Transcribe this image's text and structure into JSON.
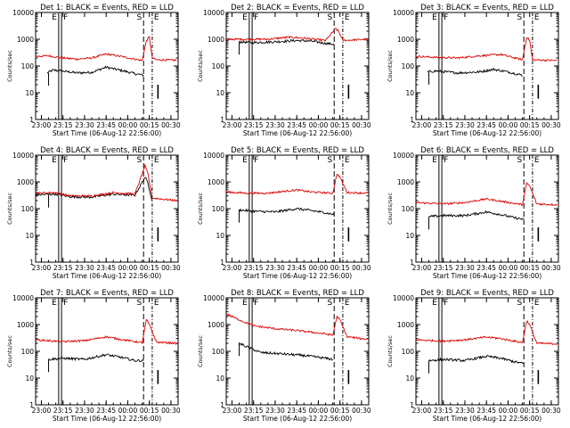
{
  "figure": {
    "colors": {
      "events": "#000000",
      "lld": "#dd0000",
      "axes": "#000000"
    },
    "xaxis_label": "Start Time (06-Aug-12 22:56:00)",
    "yaxis_label": "Counts/sec",
    "x_tick_labels": [
      "23:00",
      "23:15",
      "23:30",
      "23:45",
      "00:00",
      "00:15",
      "00:30"
    ],
    "y_tick_labels": [
      "1",
      "10",
      "100",
      "1000",
      "10000"
    ],
    "marker_labels": {
      "E": "E",
      "F": "F",
      "S": "S",
      "E2": "E"
    }
  },
  "chart_data": [
    {
      "type": "line",
      "title": "Det 1: BLACK = Events, RED = LLD",
      "xlim": [
        "22:56",
        "00:35"
      ],
      "ylim": [
        1,
        10000
      ],
      "yscale": "log",
      "vlines": [
        "23:12",
        "23:14",
        "00:11",
        "00:17"
      ],
      "series": [
        {
          "name": "Events",
          "color": "black",
          "x": [
            "23:04",
            "23:08",
            "23:14",
            "23:25",
            "23:35",
            "23:45",
            "23:52",
            "00:00",
            "00:06",
            "00:11"
          ],
          "y": [
            55,
            70,
            65,
            55,
            58,
            90,
            75,
            60,
            50,
            45
          ]
        },
        {
          "name": "LLD",
          "color": "red",
          "x": [
            "22:56",
            "23:05",
            "23:14",
            "23:25",
            "23:35",
            "23:45",
            "23:55",
            "00:05",
            "00:10",
            "00:13",
            "00:15",
            "00:17",
            "00:20",
            "00:34"
          ],
          "y": [
            230,
            240,
            200,
            180,
            200,
            280,
            230,
            180,
            160,
            900,
            1200,
            200,
            170,
            165
          ]
        }
      ]
    },
    {
      "type": "line",
      "title": "Det 2: BLACK = Events, RED = LLD",
      "xlim": [
        "22:56",
        "00:35"
      ],
      "ylim": [
        1,
        10000
      ],
      "yscale": "log",
      "vlines": [
        "23:12",
        "23:14",
        "00:11",
        "00:17"
      ],
      "series": [
        {
          "name": "Events",
          "color": "black",
          "x": [
            "23:05",
            "23:14",
            "23:30",
            "23:45",
            "23:55",
            "00:05",
            "00:11"
          ],
          "y": [
            800,
            750,
            800,
            900,
            850,
            700,
            650
          ]
        },
        {
          "name": "LLD",
          "color": "red",
          "x": [
            "22:56",
            "23:10",
            "23:25",
            "23:40",
            "23:50",
            "00:05",
            "00:12",
            "00:14",
            "00:17",
            "00:34"
          ],
          "y": [
            1000,
            1000,
            1000,
            1200,
            1100,
            900,
            2500,
            2000,
            900,
            1000
          ]
        }
      ]
    },
    {
      "type": "line",
      "title": "Det 3: BLACK = Events, RED = LLD",
      "xlim": [
        "22:56",
        "00:35"
      ],
      "ylim": [
        1,
        10000
      ],
      "yscale": "log",
      "vlines": [
        "23:12",
        "23:14",
        "00:11",
        "00:17"
      ],
      "series": [
        {
          "name": "Events",
          "color": "black",
          "x": [
            "23:04",
            "23:10",
            "23:25",
            "23:40",
            "23:50",
            "00:00",
            "00:10"
          ],
          "y": [
            60,
            65,
            55,
            60,
            75,
            60,
            45
          ]
        },
        {
          "name": "LLD",
          "color": "red",
          "x": [
            "22:56",
            "23:10",
            "23:25",
            "23:40",
            "23:55",
            "00:10",
            "00:13",
            "00:15",
            "00:17",
            "00:34"
          ],
          "y": [
            230,
            210,
            200,
            240,
            270,
            170,
            1200,
            900,
            170,
            160
          ]
        }
      ]
    },
    {
      "type": "line",
      "title": "Det 4: BLACK = Events, RED = LLD",
      "xlim": [
        "22:56",
        "00:35"
      ],
      "ylim": [
        1,
        10000
      ],
      "yscale": "log",
      "vlines": [
        "23:12",
        "23:14",
        "00:11",
        "00:17"
      ],
      "series": [
        {
          "name": "Events",
          "color": "black",
          "x": [
            "22:56",
            "23:10",
            "23:20",
            "23:35",
            "23:50",
            "00:05",
            "00:12",
            "00:14",
            "00:17"
          ],
          "y": [
            330,
            350,
            280,
            270,
            350,
            320,
            1500,
            900,
            200
          ]
        },
        {
          "name": "LLD",
          "color": "red",
          "x": [
            "22:56",
            "23:10",
            "23:20",
            "23:35",
            "23:50",
            "00:05",
            "00:12",
            "00:14",
            "00:17",
            "00:34"
          ],
          "y": [
            380,
            400,
            300,
            300,
            400,
            350,
            4000,
            2000,
            250,
            200
          ]
        }
      ]
    },
    {
      "type": "line",
      "title": "Det 5: BLACK = Events, RED = LLD",
      "xlim": [
        "22:56",
        "00:35"
      ],
      "ylim": [
        1,
        10000
      ],
      "yscale": "log",
      "vlines": [
        "23:12",
        "23:14",
        "00:11",
        "00:17"
      ],
      "series": [
        {
          "name": "Events",
          "color": "black",
          "x": [
            "23:05",
            "23:15",
            "23:30",
            "23:45",
            "23:55",
            "00:05",
            "00:11"
          ],
          "y": [
            90,
            80,
            75,
            100,
            85,
            70,
            60
          ]
        },
        {
          "name": "LLD",
          "color": "red",
          "x": [
            "22:56",
            "23:10",
            "23:25",
            "23:45",
            "23:55",
            "00:10",
            "00:13",
            "00:15",
            "00:20",
            "00:34"
          ],
          "y": [
            420,
            380,
            380,
            500,
            420,
            380,
            2000,
            1500,
            400,
            380
          ]
        }
      ]
    },
    {
      "type": "line",
      "title": "Det 6: BLACK = Events, RED = LLD",
      "xlim": [
        "22:56",
        "00:35"
      ],
      "ylim": [
        1,
        10000
      ],
      "yscale": "log",
      "vlines": [
        "23:12",
        "23:14",
        "00:11",
        "00:17"
      ],
      "series": [
        {
          "name": "Events",
          "color": "black",
          "x": [
            "23:05",
            "23:15",
            "23:30",
            "23:45",
            "23:55",
            "00:05",
            "00:11"
          ],
          "y": [
            50,
            55,
            55,
            75,
            60,
            45,
            40
          ]
        },
        {
          "name": "LLD",
          "color": "red",
          "x": [
            "22:56",
            "23:15",
            "23:30",
            "23:45",
            "23:55",
            "00:10",
            "00:13",
            "00:15",
            "00:20",
            "00:34"
          ],
          "y": [
            170,
            150,
            170,
            230,
            190,
            140,
            900,
            700,
            150,
            140
          ]
        }
      ]
    },
    {
      "type": "line",
      "title": "Det 7: BLACK = Events, RED = LLD",
      "xlim": [
        "22:56",
        "00:35"
      ],
      "ylim": [
        1,
        10000
      ],
      "yscale": "log",
      "vlines": [
        "23:12",
        "23:14",
        "00:11",
        "00:17"
      ],
      "series": [
        {
          "name": "Events",
          "color": "black",
          "x": [
            "23:05",
            "23:15",
            "23:30",
            "23:45",
            "23:55",
            "00:05",
            "00:11"
          ],
          "y": [
            50,
            55,
            50,
            75,
            60,
            45,
            45
          ]
        },
        {
          "name": "LLD",
          "color": "red",
          "x": [
            "22:56",
            "23:15",
            "23:30",
            "23:45",
            "23:55",
            "00:10",
            "00:13",
            "00:15",
            "00:20",
            "00:34"
          ],
          "y": [
            270,
            230,
            250,
            350,
            280,
            210,
            1500,
            1000,
            220,
            200
          ]
        }
      ]
    },
    {
      "type": "line",
      "title": "Det 8: BLACK = Events, RED = LLD",
      "xlim": [
        "22:56",
        "00:35"
      ],
      "ylim": [
        1,
        10000
      ],
      "yscale": "log",
      "vlines": [
        "23:12",
        "23:14",
        "00:11",
        "00:17"
      ],
      "series": [
        {
          "name": "Events",
          "color": "black",
          "x": [
            "23:05",
            "23:10",
            "23:20",
            "23:35",
            "23:50",
            "00:05",
            "00:10"
          ],
          "y": [
            200,
            150,
            90,
            80,
            70,
            55,
            50
          ]
        },
        {
          "name": "LLD",
          "color": "red",
          "x": [
            "22:56",
            "23:05",
            "23:15",
            "23:30",
            "23:45",
            "00:05",
            "00:10",
            "00:13",
            "00:15",
            "00:20",
            "00:34"
          ],
          "y": [
            2500,
            1500,
            900,
            700,
            600,
            450,
            400,
            2000,
            1500,
            350,
            280
          ]
        }
      ]
    },
    {
      "type": "line",
      "title": "Det 9: BLACK = Events, RED = LLD",
      "xlim": [
        "22:56",
        "00:35"
      ],
      "ylim": [
        1,
        10000
      ],
      "yscale": "log",
      "vlines": [
        "23:12",
        "23:14",
        "00:11",
        "00:17"
      ],
      "series": [
        {
          "name": "Events",
          "color": "black",
          "x": [
            "23:05",
            "23:15",
            "23:30",
            "23:45",
            "23:55",
            "00:05",
            "00:11"
          ],
          "y": [
            45,
            50,
            45,
            65,
            55,
            40,
            35
          ]
        },
        {
          "name": "LLD",
          "color": "red",
          "x": [
            "22:56",
            "23:15",
            "23:30",
            "23:45",
            "23:55",
            "00:10",
            "00:13",
            "00:15",
            "00:20",
            "00:34"
          ],
          "y": [
            270,
            240,
            270,
            340,
            300,
            210,
            1400,
            1000,
            200,
            190
          ]
        }
      ]
    }
  ]
}
